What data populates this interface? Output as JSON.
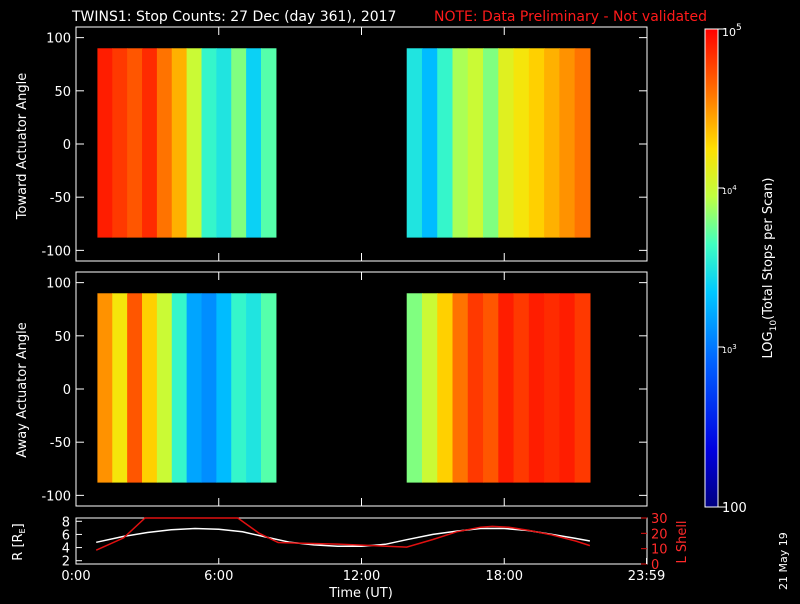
{
  "header": {
    "title": "TWINS1: Stop Counts: 27 Dec (day 361), 2017",
    "note": "NOTE: Data Preliminary - Not validated"
  },
  "panels": [
    {
      "ylabel": "Toward Actuator Angle"
    },
    {
      "ylabel": "Away Actuator Angle"
    }
  ],
  "angle_ticks": [
    "100",
    "50",
    "0",
    "-50",
    "-100"
  ],
  "colorbar": {
    "label": "LOG10(Total Stops per Scan)",
    "label_prefix": "LOG",
    "label_sub": "10",
    "label_suffix": "(Total Stops per Scan)",
    "top_label_base": "10",
    "top_label_exp": "5",
    "mid_label_base": "10",
    "mid_label_exp": "4",
    "low_label_base": "10",
    "low_label_exp": "3",
    "bottom_label": "100"
  },
  "orbit_panel": {
    "left_label": "R [RE]",
    "left_label_main": "R [R",
    "left_label_sub": "E",
    "left_label_end": "]",
    "right_label": "L Shell",
    "left_ticks": [
      "8",
      "6",
      "4",
      "2"
    ],
    "right_ticks": [
      "30",
      "20",
      "10",
      "0"
    ],
    "x_ticks": [
      "0:00",
      "6:00",
      "12:00",
      "18:00",
      "23:59"
    ],
    "xlabel": "Time (UT)"
  },
  "side_date": "21 May 19",
  "chart_data": [
    {
      "type": "heatmap",
      "title": "TWINS1: Stop Counts: 27 Dec (day 361), 2017",
      "panel": "Toward Actuator Angle",
      "xlabel": "",
      "ylabel": "Toward Actuator Angle",
      "ylim": [
        -110,
        110
      ],
      "xlim_hours": [
        0,
        24
      ],
      "data_intervals_hours": [
        [
          0.9,
          8.4
        ],
        [
          13.9,
          21.6
        ]
      ],
      "angle_range": [
        -88,
        90
      ],
      "colorscale": "log10 counts, 100 to 1e5 (blue to red)",
      "column_log_counts": [
        4.9,
        4.8,
        4.7,
        4.85,
        4.6,
        4.4,
        4.0,
        3.6,
        3.5,
        3.8,
        3.4,
        3.7,
        3.5,
        3.3,
        3.6,
        3.9,
        4.0,
        3.8,
        4.1,
        4.2,
        4.3,
        4.4,
        4.5,
        4.6
      ]
    },
    {
      "type": "heatmap",
      "panel": "Away Actuator Angle",
      "xlabel": "",
      "ylabel": "Away Actuator Angle",
      "ylim": [
        -110,
        110
      ],
      "xlim_hours": [
        0,
        24
      ],
      "data_intervals_hours": [
        [
          0.9,
          8.4
        ],
        [
          13.9,
          21.6
        ]
      ],
      "angle_range": [
        -88,
        90
      ],
      "colorscale": "log10 counts, 100 to 1e5 (blue to red)",
      "column_log_counts": [
        4.5,
        4.2,
        4.7,
        4.3,
        4.0,
        3.6,
        3.2,
        3.1,
        3.3,
        3.6,
        3.5,
        3.7,
        3.8,
        4.0,
        4.3,
        4.6,
        4.8,
        4.7,
        4.9,
        4.8,
        4.9,
        4.85,
        4.9,
        4.8
      ]
    },
    {
      "type": "line",
      "panel": "orbit",
      "xlabel": "Time (UT)",
      "ylabel": "R [RE]",
      "ylim": [
        1.5,
        8.5
      ],
      "y2label": "L Shell",
      "y2lim": [
        0,
        30
      ],
      "series": [
        {
          "name": "R [RE]",
          "axis": "left",
          "color": "#ffffff",
          "x": [
            0.85,
            2,
            3,
            4,
            5,
            6,
            7,
            8,
            9,
            10,
            11,
            12,
            13,
            13.9,
            15,
            16,
            17,
            18,
            19,
            20,
            21,
            21.6
          ],
          "y": [
            4.8,
            5.7,
            6.3,
            6.7,
            6.9,
            6.8,
            6.4,
            5.6,
            4.8,
            4.4,
            4.2,
            4.2,
            4.5,
            5.2,
            6.0,
            6.5,
            6.9,
            6.9,
            6.6,
            6.0,
            5.4,
            5.0
          ]
        },
        {
          "name": "L Shell",
          "axis": "right",
          "color": "#e01010",
          "x": [
            0.85,
            2,
            2.9,
            6.8,
            7.7,
            8.5,
            9.5,
            11,
            12.5,
            13.9,
            15,
            16,
            17,
            17.5,
            18.2,
            19,
            20,
            21,
            21.6
          ],
          "y": [
            9,
            17,
            30,
            30,
            20,
            14,
            13.5,
            13,
            12,
            11,
            16,
            21,
            24,
            24.5,
            24,
            22,
            19,
            15,
            12
          ]
        }
      ]
    }
  ]
}
